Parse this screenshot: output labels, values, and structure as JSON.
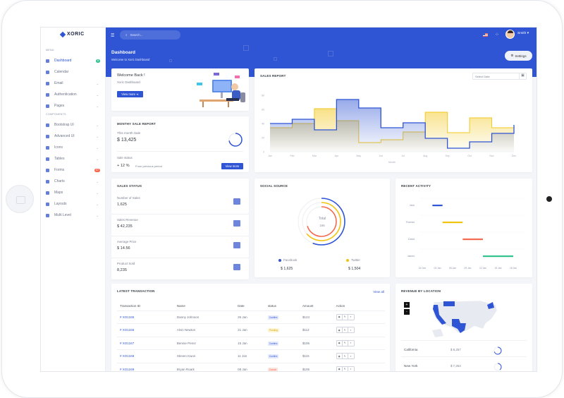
{
  "brand": "XORIC",
  "sidebar": {
    "menu_label": "MENU",
    "components_label": "COMPONENTS",
    "items": [
      {
        "label": "Dashboard",
        "icon": "monitor-icon",
        "active": true,
        "badge": "8",
        "badge_color": "#34c38f"
      },
      {
        "label": "Calendar",
        "icon": "calendar-icon"
      },
      {
        "label": "Email",
        "icon": "mail-icon",
        "chevron": true
      },
      {
        "label": "Authentication",
        "icon": "lock-icon",
        "chevron": true
      },
      {
        "label": "Pages",
        "icon": "pages-icon",
        "chevron": true
      }
    ],
    "components": [
      {
        "label": "Bootstrap UI",
        "icon": "bootstrap-icon",
        "chevron": true
      },
      {
        "label": "Advanced UI",
        "icon": "advanced-icon",
        "chevron": true
      },
      {
        "label": "Icons",
        "icon": "icons-icon",
        "chevron": true
      },
      {
        "label": "Tables",
        "icon": "table-icon",
        "chevron": true
      },
      {
        "label": "Forms",
        "icon": "form-icon",
        "badge": "07",
        "badge_color": "#f46a4e"
      },
      {
        "label": "Charts",
        "icon": "pie-chart-icon",
        "chevron": true
      },
      {
        "label": "Maps",
        "icon": "map-icon",
        "chevron": true
      },
      {
        "label": "Layouts",
        "icon": "layout-icon",
        "chevron": true
      },
      {
        "label": "Multi Level",
        "icon": "multilevel-icon",
        "chevron": true
      }
    ]
  },
  "header": {
    "search_placeholder": "Search...",
    "user": "Smith",
    "page_title": "Dashboard",
    "page_subtitle": "Welcome to Xoric Dashboard",
    "settings_label": "Settings",
    "accent": "#2f55d4"
  },
  "welcome": {
    "title": "Welcome Back !",
    "subtitle": "Xoric Dashboard",
    "button": "View more"
  },
  "monthly": {
    "title": "MONTHY SALE REPORT",
    "this_month_label": "This month Sale",
    "this_month_value": "$ 13,425",
    "status_label": "Sale status",
    "status_value": "+ 12 %",
    "status_note": "From previous period",
    "button": "View more",
    "progress": 0.72
  },
  "sales_report": {
    "title": "SALES REPORT",
    "date_placeholder": "Select Date"
  },
  "chart_data": [
    {
      "type": "area",
      "title": "SALES REPORT",
      "xlabel": "Month",
      "ylabel": "",
      "ylim": [
        0,
        80
      ],
      "yticks": [
        0,
        20,
        40,
        60,
        80
      ],
      "categories": [
        "Jan",
        "Feb",
        "Mar",
        "Apr",
        "May",
        "Jun",
        "Jul",
        "Aug",
        "Sep",
        "Oct",
        "Nov",
        "Dec"
      ],
      "step": true,
      "series": [
        {
          "color": "#f1c40f",
          "values": [
            34,
            40,
            61,
            44,
            13,
            17,
            28,
            56,
            27,
            48,
            34,
            34
          ]
        },
        {
          "color": "#2f55d4",
          "values": [
            40,
            46,
            31,
            74,
            62,
            34,
            41,
            19,
            5,
            14,
            26,
            38
          ]
        }
      ]
    },
    {
      "type": "bar",
      "title": "RECENT ACTIVITY",
      "orientation": "gantt",
      "xticks": [
        "31 Dec",
        "03 Jan",
        "06 Jan",
        "09 Jan",
        "12 Jan",
        "15 Jan",
        "18 Jan"
      ],
      "tasks": [
        {
          "name": "Jack",
          "start": "02 Jan",
          "end": "04 Jan",
          "color": "#2f55d4"
        },
        {
          "name": "Thomas",
          "start": "04 Jan",
          "end": "08 Jan",
          "color": "#f1c40f"
        },
        {
          "name": "David",
          "start": "08 Jan",
          "end": "12 Jan",
          "color": "#f46a4e"
        },
        {
          "name": "James",
          "start": "12 Jan",
          "end": "18 Jan",
          "color": "#34c38f"
        }
      ]
    },
    {
      "type": "pie",
      "title": "SOCIAL SOURCE",
      "variant": "radial-bar",
      "center_label": "Total",
      "center_value": "166",
      "rings_percent": [
        {
          "color": "#2f55d4",
          "value": 56
        },
        {
          "color": "#f1c40f",
          "value": 64
        },
        {
          "color": "#f46a4e",
          "value": 70
        }
      ]
    }
  ],
  "sales_status": {
    "title": "SALES STATUS",
    "items": [
      {
        "label": "Number of Sales",
        "value": "1,625",
        "icon": "layers-icon"
      },
      {
        "label": "Sales Revenue",
        "value": "$ 42,235",
        "icon": "bar-chart-icon"
      },
      {
        "label": "Average Price",
        "value": "$ 14.56",
        "icon": "ticket-icon"
      },
      {
        "label": "Product Sold",
        "value": "8,235",
        "icon": "box-icon"
      }
    ]
  },
  "social": {
    "legend": [
      {
        "name": "Facebook",
        "value": "$ 1,625",
        "color": "#2f55d4"
      },
      {
        "name": "Twitter",
        "value": "$ 1,504",
        "color": "#f1c40f"
      }
    ]
  },
  "transactions": {
    "title": "LATEST TRANSACTION",
    "view_all": "View all",
    "columns": [
      "Transaction ID",
      "Name",
      "Date",
      "status",
      "Amount",
      "Action"
    ],
    "rows": [
      {
        "id": "# XO1345",
        "name": "Danny Johnson",
        "date": "26 Jan",
        "status": "Confirm",
        "amount": "$124"
      },
      {
        "id": "# XO1346",
        "name": "Alvin Newton",
        "date": "21 Jan",
        "status": "Pending",
        "amount": "$112"
      },
      {
        "id": "# XO1347",
        "name": "Bennie Perez",
        "date": "15 Jan",
        "status": "Confirm",
        "amount": "$106"
      },
      {
        "id": "# XO1348",
        "name": "Steven Kwon",
        "date": "11 Jan",
        "status": "Confirm",
        "amount": "$115"
      },
      {
        "id": "# XO1349",
        "name": "Bryan Roark",
        "date": "08 Jan",
        "status": "Cancel",
        "amount": "$105"
      }
    ]
  },
  "revenue": {
    "title": "REVENUE BY LOCATION",
    "zoom_in": "+",
    "zoom_out": "-",
    "rows": [
      {
        "location": "California",
        "value": "$ 8,257",
        "progress": 0.7
      },
      {
        "location": "New York",
        "value": "$ 7,253",
        "progress": 0.4
      }
    ]
  }
}
